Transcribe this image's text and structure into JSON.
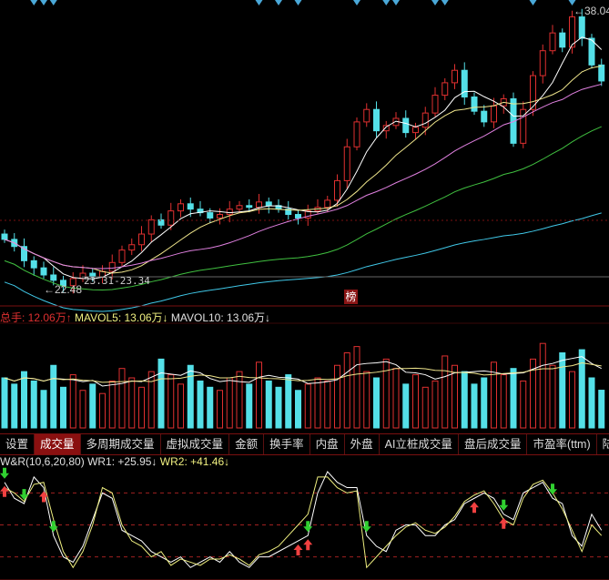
{
  "chart_data": [
    {
      "type": "candlestick",
      "title": "",
      "ylim": [
        21.46,
        38.65
      ],
      "open": [
        25.5,
        25.2,
        24.8,
        24.0,
        23.6,
        23.2,
        22.9,
        22.6,
        23.0,
        23.3,
        23.1,
        23.4,
        23.9,
        24.6,
        24.9,
        25.5,
        26.3,
        26.0,
        26.8,
        27.2,
        26.9,
        26.7,
        26.4,
        26.6,
        26.9,
        27.1,
        27.0,
        27.3,
        27.1,
        26.9,
        26.6,
        26.4,
        26.8,
        27.0,
        27.4,
        28.5,
        30.4,
        31.8,
        32.5,
        31.3,
        31.6,
        32.0,
        31.2,
        31.5,
        32.3,
        33.3,
        34.0,
        34.7,
        33.2,
        32.4,
        31.8,
        32.7,
        33.1,
        30.6,
        32.5,
        34.4,
        35.8,
        36.8,
        36.0,
        37.7,
        36.5,
        35.0
      ],
      "close": [
        25.2,
        24.8,
        24.0,
        23.6,
        23.2,
        22.9,
        22.6,
        23.0,
        23.3,
        23.1,
        23.4,
        23.9,
        24.6,
        24.9,
        25.5,
        26.3,
        26.0,
        26.8,
        27.2,
        26.9,
        26.7,
        26.4,
        26.6,
        26.9,
        27.1,
        27.0,
        27.3,
        27.1,
        26.9,
        26.6,
        26.4,
        26.8,
        27.0,
        27.4,
        28.5,
        30.4,
        31.8,
        32.5,
        31.3,
        31.6,
        32.0,
        31.2,
        31.5,
        32.3,
        33.3,
        34.0,
        34.7,
        33.2,
        32.4,
        31.8,
        32.7,
        33.1,
        30.6,
        32.5,
        34.4,
        35.8,
        36.8,
        36.0,
        37.7,
        36.5,
        35.0,
        34.1
      ],
      "high_label": "38.04",
      "low_label": "22.48",
      "range_label": "23.31-23.34",
      "moving_averages": [
        {
          "period": 5,
          "color": "#ffffff"
        },
        {
          "period": 10,
          "color": "#f0e68c"
        },
        {
          "period": 20,
          "color": "#e080e0"
        },
        {
          "period": 30,
          "color": "#40c040"
        },
        {
          "period": 60,
          "color": "#40c8e8"
        }
      ],
      "signal_marker_positions": [
        3,
        4,
        5,
        26,
        28,
        30,
        36,
        39,
        40,
        44,
        45,
        54,
        58
      ],
      "up_color": "#e03030",
      "down_color": "#54e0e8"
    },
    {
      "type": "bar",
      "name": "volume",
      "unit": "万",
      "values": [
        16,
        14,
        18,
        15,
        12,
        20,
        13,
        17,
        12,
        14,
        11,
        15,
        19,
        16,
        13,
        18,
        22,
        17,
        14,
        20,
        15,
        13,
        12,
        16,
        18,
        14,
        21,
        15,
        13,
        17,
        12,
        14,
        16,
        15,
        20,
        24,
        26,
        18,
        16,
        22,
        19,
        14,
        17,
        13,
        15,
        23,
        20,
        18,
        14,
        16,
        21,
        17,
        19,
        15,
        22,
        27,
        20,
        24,
        18,
        25,
        16,
        12.06
      ],
      "ylim": [
        0,
        32
      ],
      "labels": {
        "total_hands": "总手: 12.06万↑",
        "mavol5": "MAVOL5: 13.06万↓",
        "mavol10": "MAVOL10: 13.06万↓"
      }
    },
    {
      "type": "line",
      "name": "W&R",
      "ylim": [
        0,
        100
      ],
      "levels": [
        20,
        50,
        80
      ],
      "series": [
        {
          "name": "WR1",
          "color": "#ffffff",
          "values": [
            90,
            75,
            70,
            95,
            85,
            40,
            20,
            15,
            30,
            55,
            80,
            75,
            45,
            40,
            35,
            25,
            20,
            15,
            20,
            10,
            15,
            20,
            15,
            25,
            15,
            10,
            20,
            20,
            25,
            30,
            35,
            40,
            80,
            100,
            90,
            85,
            85,
            40,
            30,
            25,
            45,
            50,
            50,
            40,
            40,
            50,
            55,
            70,
            75,
            80,
            75,
            60,
            55,
            80,
            85,
            90,
            75,
            70,
            40,
            30,
            60,
            45
          ]
        },
        {
          "name": "WR2",
          "color": "#f0f080",
          "values": [
            85,
            80,
            72,
            88,
            90,
            55,
            25,
            10,
            25,
            50,
            85,
            80,
            50,
            35,
            30,
            20,
            25,
            12,
            18,
            15,
            12,
            18,
            18,
            22,
            18,
            12,
            22,
            25,
            30,
            40,
            50,
            60,
            95,
            95,
            85,
            80,
            82,
            10,
            20,
            30,
            40,
            48,
            52,
            45,
            42,
            48,
            58,
            72,
            78,
            82,
            70,
            55,
            50,
            75,
            88,
            92,
            80,
            65,
            45,
            25,
            50,
            40
          ]
        }
      ],
      "buy_signals": [
        0,
        4,
        30,
        31,
        48,
        51
      ],
      "sell_signals": [
        0,
        2,
        5,
        31,
        37,
        51,
        56
      ],
      "labels": {
        "title": "W&R(10,6,20,80)",
        "wr1": "WR1: +25.95↓",
        "wr2": "WR2: +41.46↓"
      }
    }
  ],
  "tabs": [
    {
      "label": "设置",
      "active": false
    },
    {
      "label": "成交量",
      "active": true
    },
    {
      "label": "多周期成交量",
      "active": false
    },
    {
      "label": "虚拟成交量",
      "active": false
    },
    {
      "label": "金额",
      "active": false
    },
    {
      "label": "换手率",
      "active": false
    },
    {
      "label": "内盘",
      "active": false
    },
    {
      "label": "外盘",
      "active": false
    },
    {
      "label": "AI立桩成交量",
      "active": false
    },
    {
      "label": "盘后成交量",
      "active": false
    },
    {
      "label": "市盈率(ttm)",
      "active": false
    },
    {
      "label": "陆股",
      "active": false
    }
  ],
  "badge": "榜",
  "colors": {
    "separator": "#7a1010",
    "dashed": "#a02020",
    "text_red": "#e03030",
    "text_yellow": "#f0f080",
    "text_white": "#e0e0e0"
  }
}
